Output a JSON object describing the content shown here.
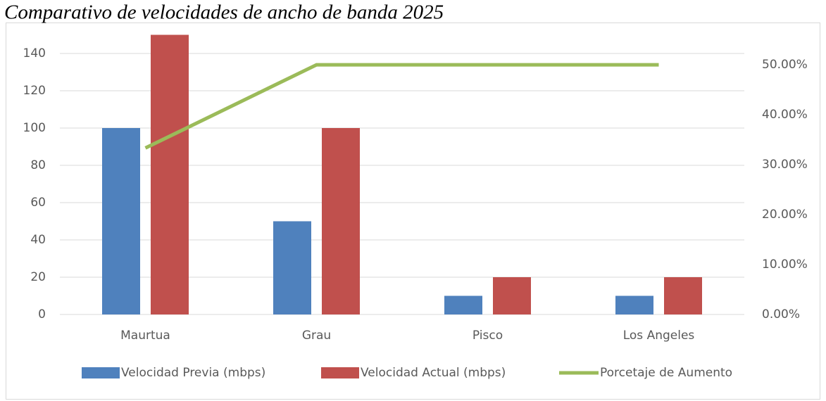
{
  "chart_data": {
    "type": "bar_line",
    "title": "Comparativo de velocidades de ancho de banda 2025",
    "categories": [
      "Maurtua",
      "Grau",
      "Pisco",
      "Los Angeles"
    ],
    "series": [
      {
        "name": "Velocidad Previa (mbps)",
        "color": "#4f81bd",
        "type": "bar",
        "values": [
          100,
          50,
          10,
          10
        ]
      },
      {
        "name": "Velocidad Actual (mbps)",
        "color": "#c0504d",
        "type": "bar",
        "values": [
          150,
          100,
          20,
          20
        ]
      },
      {
        "name": "Porcetaje de Aumento",
        "color": "#9bbb59",
        "type": "line",
        "axis": "y2",
        "values": [
          33.33,
          50,
          50,
          50
        ]
      }
    ],
    "ylim": [
      0,
      150
    ],
    "yticks": [
      0,
      20,
      40,
      60,
      80,
      100,
      120,
      140
    ],
    "y2lim": [
      0,
      56
    ],
    "y2ticks": [
      {
        "value": 0,
        "label": "0.00%"
      },
      {
        "value": 10,
        "label": "10.00%"
      },
      {
        "value": 20,
        "label": "20.00%"
      },
      {
        "value": 30,
        "label": "30.00%"
      },
      {
        "value": 40,
        "label": "40.00%"
      },
      {
        "value": 50,
        "label": "50.00%"
      }
    ],
    "grid": true,
    "legend": "bottom"
  }
}
